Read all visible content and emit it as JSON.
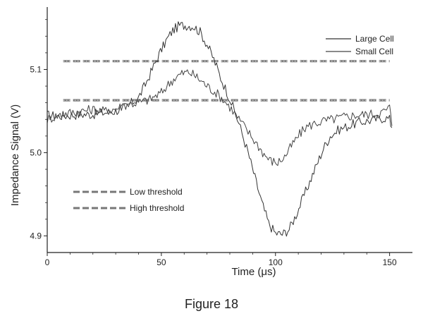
{
  "chart_data": {
    "type": "line",
    "xlabel": "Time (μs)",
    "ylabel": "Impedance Signal (V)",
    "xlim": [
      0,
      160
    ],
    "ylim": [
      4.88,
      5.175
    ],
    "x_ticks": [
      0,
      50,
      100,
      150
    ],
    "y_ticks": [
      4.9,
      5.0,
      5.1
    ],
    "x_tick_labels": [
      "0",
      "50",
      "100",
      "150"
    ],
    "y_tick_labels": [
      "4.9",
      "5.0",
      "5.1"
    ],
    "grid": false,
    "legend_top": {
      "position": "top-right",
      "entries": [
        "Large Cell",
        "Small Cell"
      ]
    },
    "legend_bottom": {
      "position": "bottom-left",
      "entries": [
        "Low threshold",
        "High threshold"
      ]
    },
    "thresholds": [
      {
        "name": "Low threshold",
        "y": 5.063,
        "style": "dashed-hatched",
        "color": "#777777"
      },
      {
        "name": "High threshold",
        "y": 5.11,
        "style": "dashed-hatched",
        "color": "#777777"
      }
    ],
    "series": [
      {
        "name": "Large Cell",
        "color": "#333333",
        "points": [
          [
            0,
            5.045
          ],
          [
            5,
            5.044
          ],
          [
            10,
            5.045
          ],
          [
            15,
            5.046
          ],
          [
            20,
            5.046
          ],
          [
            25,
            5.048
          ],
          [
            30,
            5.05
          ],
          [
            35,
            5.056
          ],
          [
            40,
            5.066
          ],
          [
            43,
            5.082
          ],
          [
            46,
            5.1
          ],
          [
            49,
            5.118
          ],
          [
            52,
            5.134
          ],
          [
            55,
            5.147
          ],
          [
            58,
            5.153
          ],
          [
            61,
            5.153
          ],
          [
            64,
            5.152
          ],
          [
            67,
            5.145
          ],
          [
            70,
            5.13
          ],
          [
            73,
            5.112
          ],
          [
            76,
            5.09
          ],
          [
            80,
            5.065
          ],
          [
            84,
            5.035
          ],
          [
            88,
            5.0
          ],
          [
            91,
            4.97
          ],
          [
            94,
            4.94
          ],
          [
            97,
            4.915
          ],
          [
            100,
            4.903
          ],
          [
            103,
            4.902
          ],
          [
            106,
            4.908
          ],
          [
            109,
            4.925
          ],
          [
            112,
            4.945
          ],
          [
            115,
            4.965
          ],
          [
            118,
            4.985
          ],
          [
            121,
            5.005
          ],
          [
            124,
            5.02
          ],
          [
            128,
            5.028
          ],
          [
            132,
            5.032
          ],
          [
            136,
            5.036
          ],
          [
            140,
            5.038
          ],
          [
            144,
            5.04
          ],
          [
            148,
            5.042
          ],
          [
            150,
            5.04
          ],
          [
            151,
            5.03
          ]
        ]
      },
      {
        "name": "Small Cell",
        "color": "#444444",
        "points": [
          [
            0,
            5.04
          ],
          [
            5,
            5.045
          ],
          [
            10,
            5.048
          ],
          [
            15,
            5.05
          ],
          [
            20,
            5.052
          ],
          [
            25,
            5.05
          ],
          [
            30,
            5.053
          ],
          [
            35,
            5.058
          ],
          [
            40,
            5.06
          ],
          [
            45,
            5.064
          ],
          [
            50,
            5.072
          ],
          [
            53,
            5.082
          ],
          [
            56,
            5.09
          ],
          [
            59,
            5.095
          ],
          [
            62,
            5.097
          ],
          [
            65,
            5.092
          ],
          [
            68,
            5.085
          ],
          [
            71,
            5.078
          ],
          [
            74,
            5.072
          ],
          [
            77,
            5.064
          ],
          [
            80,
            5.055
          ],
          [
            84,
            5.04
          ],
          [
            88,
            5.025
          ],
          [
            92,
            5.01
          ],
          [
            95,
            4.998
          ],
          [
            98,
            4.99
          ],
          [
            101,
            4.988
          ],
          [
            104,
            4.995
          ],
          [
            107,
            5.008
          ],
          [
            110,
            5.02
          ],
          [
            113,
            5.03
          ],
          [
            117,
            5.035
          ],
          [
            121,
            5.038
          ],
          [
            125,
            5.04
          ],
          [
            130,
            5.043
          ],
          [
            135,
            5.045
          ],
          [
            140,
            5.046
          ],
          [
            145,
            5.047
          ],
          [
            148,
            5.05
          ],
          [
            150,
            5.055
          ],
          [
            151,
            5.032
          ]
        ]
      }
    ]
  },
  "figure": {
    "caption": "Figure 18"
  }
}
